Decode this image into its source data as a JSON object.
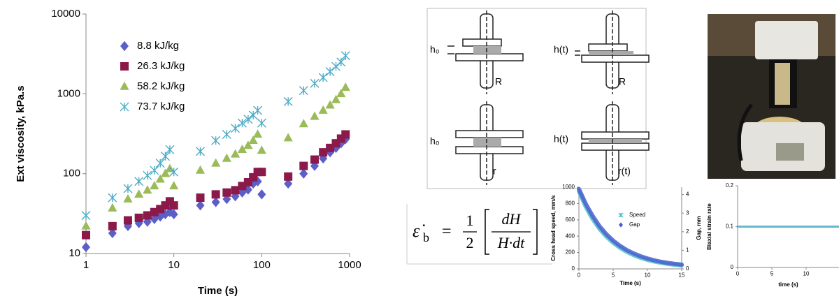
{
  "chart_data": [
    {
      "type": "scatter",
      "log_x": true,
      "log_y": true,
      "legend": "upper left",
      "xlabel": "Time (s)",
      "ylabel": "Ext viscosity, kPa.s",
      "xlim": [
        1,
        1000
      ],
      "ylim": [
        10,
        10000
      ],
      "xticks": [
        1,
        10,
        100,
        1000
      ],
      "yticks": [
        10,
        100,
        1000,
        10000
      ],
      "x": [
        1,
        2,
        3,
        4,
        5,
        6,
        7,
        8,
        9,
        10,
        20,
        30,
        40,
        50,
        60,
        70,
        80,
        90,
        100,
        200,
        300,
        400,
        500,
        600,
        700,
        800,
        900
      ],
      "series": [
        {
          "name": "8.8 kJ/kg",
          "color": "#5b5fc7",
          "marker": "diamond",
          "values": [
            12,
            18,
            22,
            24,
            25,
            27,
            29,
            31,
            33,
            31,
            40,
            44,
            48,
            52,
            58,
            63,
            75,
            80,
            55,
            75,
            100,
            125,
            155,
            185,
            210,
            240,
            270
          ]
        },
        {
          "name": "26.3 kJ/kg",
          "color": "#8b1a4a",
          "marker": "square",
          "values": [
            17,
            22,
            26,
            28,
            30,
            33,
            36,
            40,
            45,
            40,
            50,
            55,
            58,
            62,
            70,
            78,
            90,
            105,
            105,
            92,
            125,
            150,
            185,
            210,
            240,
            275,
            310
          ]
        },
        {
          "name": "58.2 kJ/kg",
          "color": "#9bbb59",
          "marker": "triangle",
          "values": [
            22,
            37,
            48,
            55,
            62,
            70,
            85,
            100,
            115,
            70,
            110,
            135,
            155,
            175,
            200,
            225,
            260,
            310,
            195,
            280,
            420,
            520,
            620,
            720,
            840,
            1000,
            1200
          ]
        },
        {
          "name": "73.7 kJ/kg",
          "color": "#4bacc6",
          "marker": "asterisk",
          "values": [
            30,
            50,
            65,
            80,
            95,
            110,
            135,
            165,
            200,
            105,
            190,
            260,
            310,
            370,
            430,
            480,
            540,
            620,
            430,
            800,
            1100,
            1350,
            1600,
            1900,
            2200,
            2500,
            3000
          ]
        }
      ]
    },
    {
      "type": "line",
      "legend": "right",
      "xlabel": "Time (s)",
      "ylabel": "Cross head speed, mm/s",
      "y2label": "Gap, mm",
      "xlim": [
        0,
        15
      ],
      "ylim": [
        0,
        1000
      ],
      "y2lim": [
        0,
        4.4
      ],
      "xticks": [
        0,
        5,
        10,
        15
      ],
      "yticks": [
        0,
        200,
        400,
        600,
        800,
        1000
      ],
      "y2ticks": [
        0,
        1,
        2,
        3,
        4
      ],
      "x": [
        0,
        1,
        2,
        3,
        4,
        5,
        6,
        7,
        8,
        9,
        10,
        11,
        12,
        13,
        14,
        15
      ],
      "series": [
        {
          "name": "Speed",
          "color": "#4bc0c8",
          "marker": "asterisk",
          "values": [
            950,
            760,
            610,
            490,
            395,
            320,
            258,
            208,
            168,
            136,
            110,
            90,
            74,
            61,
            51,
            43
          ]
        },
        {
          "name": "Gap",
          "color": "#4a5fd0",
          "marker": "diamond",
          "axis": "y2",
          "values": [
            4.3,
            3.5,
            2.85,
            2.3,
            1.87,
            1.52,
            1.24,
            1.01,
            0.83,
            0.68,
            0.56,
            0.46,
            0.38,
            0.32,
            0.27,
            0.23
          ]
        }
      ]
    },
    {
      "type": "line",
      "xlabel": "time (s)",
      "ylabel": "Biaxial strain rate",
      "xlim": [
        0,
        14.8
      ],
      "ylim": [
        0,
        0.2
      ],
      "xticks": [
        0,
        5,
        10
      ],
      "yticks": [
        0,
        0.1,
        0.2
      ],
      "x": [
        0,
        1,
        2,
        3,
        4,
        5,
        6,
        7,
        8,
        9,
        10,
        11,
        12,
        13,
        14,
        14.8
      ],
      "series": [
        {
          "color": "#4bacc6",
          "values": [
            0.1,
            0.1,
            0.1,
            0.1,
            0.1,
            0.1,
            0.1,
            0.1,
            0.1,
            0.1,
            0.1,
            0.1,
            0.1,
            0.1,
            0.1,
            0.1
          ]
        }
      ]
    }
  ],
  "diagram": {
    "labels": [
      "h₀",
      "R",
      "h(t)",
      "R",
      "h₀",
      "r",
      "h(t)",
      "r(t)"
    ]
  },
  "equation": {
    "symbol": "ε̇",
    "subscript": "b",
    "equals": "=",
    "numerator": "1",
    "denominator": "2",
    "inner_numerator": "dH",
    "inner_denominator": "H·dt"
  }
}
